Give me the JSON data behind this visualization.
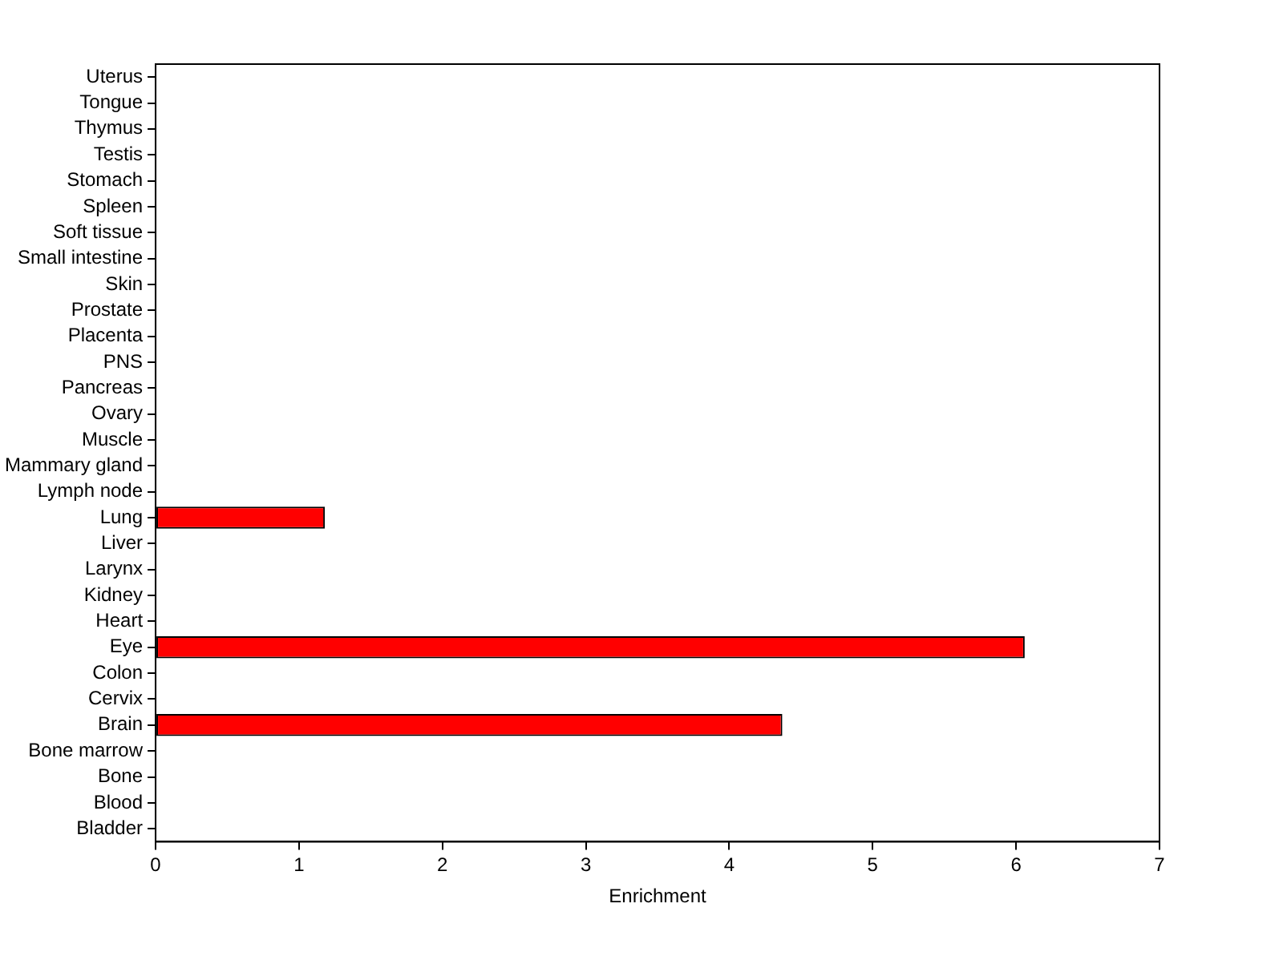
{
  "chart_data": {
    "type": "bar",
    "orientation": "horizontal",
    "xlabel": "Enrichment",
    "categories": [
      "Uterus",
      "Tongue",
      "Thymus",
      "Testis",
      "Stomach",
      "Spleen",
      "Soft tissue",
      "Small intestine",
      "Skin",
      "Prostate",
      "Placenta",
      "PNS",
      "Pancreas",
      "Ovary",
      "Muscle",
      "Mammary gland",
      "Lymph node",
      "Lung",
      "Liver",
      "Larynx",
      "Kidney",
      "Heart",
      "Eye",
      "Colon",
      "Cervix",
      "Brain",
      "Bone marrow",
      "Bone",
      "Blood",
      "Bladder"
    ],
    "values": [
      0,
      0,
      0,
      0,
      0,
      0,
      0,
      0,
      0,
      0,
      0,
      0,
      0,
      0,
      0,
      0,
      0,
      1.18,
      0,
      0,
      0,
      0,
      6.06,
      0,
      0,
      4.37,
      0,
      0,
      0,
      0
    ],
    "color": "#ff0000",
    "xlim": [
      0,
      7
    ],
    "xticks": [
      0,
      1,
      2,
      3,
      4,
      5,
      6,
      7
    ],
    "grid": false,
    "legend": false
  }
}
